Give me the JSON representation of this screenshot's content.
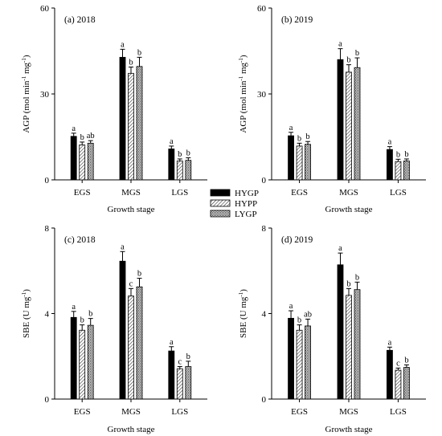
{
  "chart_data": [
    {
      "type": "bar",
      "title": "(a) 2018",
      "xlabel": "Growth stage",
      "ylabel": "AGP (mol min-1 mg-1)",
      "ylabel_main": "AGP (mol min",
      "ylabel_sup1": "-1",
      "ylabel_mid": " mg",
      "ylabel_sup2": "-1",
      "ylabel_end": ")",
      "ylim": [
        0,
        60
      ],
      "yticks": [
        "0",
        "30",
        "60"
      ],
      "yticks_values": [
        0,
        30,
        60
      ],
      "categories": [
        "EGS",
        "MGS",
        "LGS"
      ],
      "series": [
        {
          "name": "HYGP",
          "values": [
            15.2,
            42.8,
            10.8
          ],
          "errors": [
            1.1,
            2.8,
            1.0
          ],
          "labels": [
            "a",
            "a",
            "a"
          ]
        },
        {
          "name": "HYPP",
          "values": [
            12.2,
            37.2,
            6.6
          ],
          "errors": [
            1.0,
            2.2,
            0.7
          ],
          "labels": [
            "b",
            "b",
            "b"
          ]
        },
        {
          "name": "LYGP",
          "values": [
            12.8,
            39.6,
            6.8
          ],
          "errors": [
            0.9,
            3.2,
            0.9
          ],
          "labels": [
            "ab",
            "b",
            "b"
          ]
        }
      ]
    },
    {
      "type": "bar",
      "title": "(b) 2019",
      "xlabel": "Growth stage",
      "ylabel": "AGP (mol min-1 mg-1)",
      "ylabel_main": "AGP (mol min",
      "ylabel_sup1": "-1",
      "ylabel_mid": " mg",
      "ylabel_sup2": "-1",
      "ylabel_end": ")",
      "ylim": [
        0,
        60
      ],
      "yticks": [
        "0",
        "30",
        "60"
      ],
      "yticks_values": [
        0,
        30,
        60
      ],
      "categories": [
        "EGS",
        "MGS",
        "LGS"
      ],
      "series": [
        {
          "name": "HYGP",
          "values": [
            15.4,
            42.0,
            10.6
          ],
          "errors": [
            1.2,
            3.8,
            1.0
          ],
          "labels": [
            "a",
            "a",
            "a"
          ]
        },
        {
          "name": "HYPP",
          "values": [
            11.8,
            37.6,
            6.4
          ],
          "errors": [
            1.0,
            2.6,
            0.8
          ],
          "labels": [
            "b",
            "b",
            "b"
          ]
        },
        {
          "name": "LYGP",
          "values": [
            12.4,
            39.2,
            6.6
          ],
          "errors": [
            1.0,
            3.4,
            0.7
          ],
          "labels": [
            "b",
            "b",
            "b"
          ]
        }
      ]
    },
    {
      "type": "bar",
      "title": "(c) 2018",
      "xlabel": "Growth stage",
      "ylabel": "SBE (U mg-1)",
      "ylabel_main": "SBE (U mg",
      "ylabel_sup1": "-1",
      "ylabel_mid": "",
      "ylabel_sup2": "",
      "ylabel_end": ")",
      "ylim": [
        0,
        8
      ],
      "yticks": [
        "0",
        "4",
        "8"
      ],
      "yticks_values": [
        0,
        4,
        8
      ],
      "categories": [
        "EGS",
        "MGS",
        "LGS"
      ],
      "series": [
        {
          "name": "HYGP",
          "values": [
            3.82,
            6.45,
            2.25
          ],
          "errors": [
            0.28,
            0.45,
            0.2
          ],
          "labels": [
            "a",
            "a",
            "a"
          ]
        },
        {
          "name": "HYPP",
          "values": [
            3.22,
            4.82,
            1.42
          ],
          "errors": [
            0.25,
            0.35,
            0.1
          ],
          "labels": [
            "b",
            "c",
            "c"
          ]
        },
        {
          "name": "LYGP",
          "values": [
            3.45,
            5.25,
            1.52
          ],
          "errors": [
            0.32,
            0.4,
            0.25
          ],
          "labels": [
            "b",
            "b",
            "b"
          ]
        }
      ]
    },
    {
      "type": "bar",
      "title": "(d) 2019",
      "xlabel": "Growth stage",
      "ylabel": "SBE (U mg-1)",
      "ylabel_main": "SBE (U mg",
      "ylabel_sup1": "-1",
      "ylabel_mid": "",
      "ylabel_sup2": "",
      "ylabel_end": ")",
      "ylim": [
        0,
        8
      ],
      "yticks": [
        "0",
        "4",
        "8"
      ],
      "yticks_values": [
        0,
        4,
        8
      ],
      "categories": [
        "EGS",
        "MGS",
        "LGS"
      ],
      "series": [
        {
          "name": "HYGP",
          "values": [
            3.78,
            6.28,
            2.28
          ],
          "errors": [
            0.35,
            0.55,
            0.15
          ],
          "labels": [
            "a",
            "a",
            "a"
          ]
        },
        {
          "name": "HYPP",
          "values": [
            3.22,
            4.85,
            1.35
          ],
          "errors": [
            0.25,
            0.32,
            0.1
          ],
          "labels": [
            "b",
            "b",
            "c"
          ]
        },
        {
          "name": "LYGP",
          "values": [
            3.42,
            5.12,
            1.48
          ],
          "errors": [
            0.32,
            0.35,
            0.12
          ],
          "labels": [
            "ab",
            "b",
            "b"
          ]
        }
      ]
    }
  ],
  "legend": {
    "placement": "center",
    "entries": [
      {
        "name": "HYGP",
        "pattern": "solid-black"
      },
      {
        "name": "HYPP",
        "pattern": "diagonal-hatch"
      },
      {
        "name": "LYGP",
        "pattern": "crosshatch"
      }
    ]
  }
}
